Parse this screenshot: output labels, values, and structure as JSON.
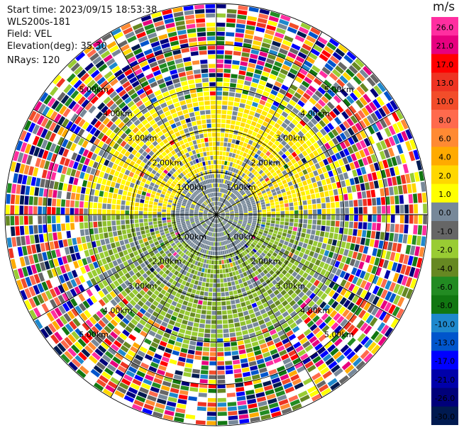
{
  "header": {
    "start_time": "Start time: 2023/09/15 18:53:38",
    "instrument": "WLS200s-181",
    "field": "Field: VEL",
    "elevation": "Elevation(deg): 35.30",
    "nrays": "NRays: 120"
  },
  "colorbar": {
    "unit": "m/s",
    "ticks": [
      "26.0",
      "21.0",
      "17.0",
      "13.0",
      "10.0",
      "8.0",
      "6.0",
      "4.0",
      "2.0",
      "1.0",
      "0.0",
      "-1.0",
      "-2.0",
      "-4.0",
      "-6.0",
      "-8.0",
      "-10.0",
      "-13.0",
      "-17.0",
      "-21.0",
      "-26.0",
      "-30.0"
    ],
    "colors": [
      "#ff2ea0",
      "#e7007f",
      "#ff0000",
      "#ee3322",
      "#f24d2a",
      "#ff6a4d",
      "#ff8a33",
      "#ffaa00",
      "#ffd700",
      "#ffff00",
      "#778899",
      "#666666",
      "#99cc33",
      "#668822",
      "#228b22",
      "#117711",
      "#1e88cc",
      "#0055cc",
      "#0000ff",
      "#0000aa",
      "#00007a",
      "#001a50"
    ]
  },
  "chart_data": {
    "type": "heatmap",
    "title": "",
    "field": "VEL",
    "units": "m/s",
    "nrays": 120,
    "range_ring_labels": [
      "1.00km",
      "2.00km",
      "3.00km",
      "4.00km",
      "5.00km"
    ],
    "velocity_range": [
      -30,
      26
    ],
    "pattern": {
      "inner_north_sector": "yellow (+1 to +2 m/s)",
      "inner_south_sector": "olive green (-1 to -2 m/s)",
      "near_center": "gray (~0 m/s)",
      "outer_rings": "noisy, full color range"
    }
  }
}
